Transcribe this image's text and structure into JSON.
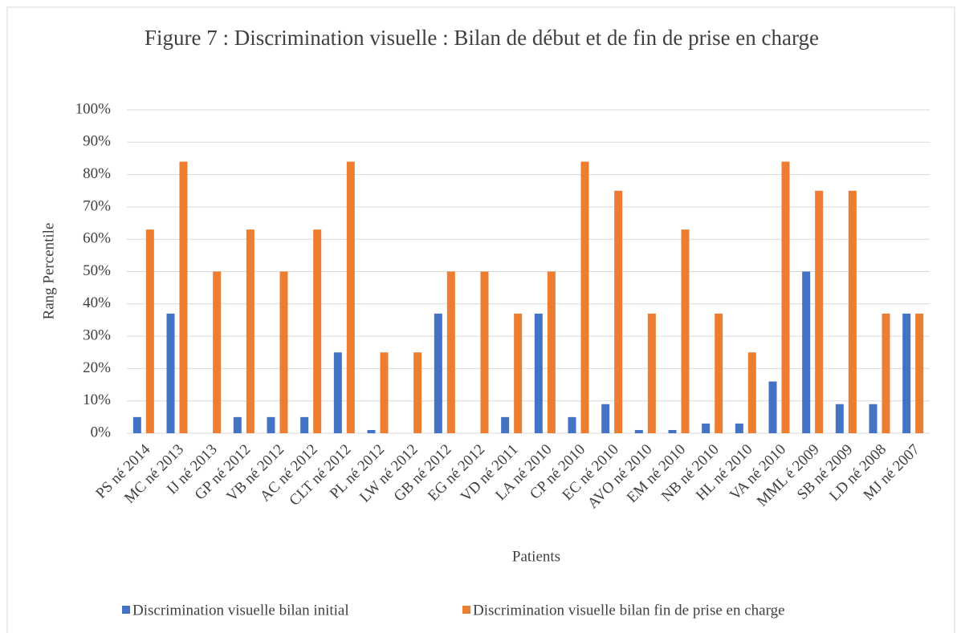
{
  "chart_data": {
    "type": "bar",
    "title": "Figure 7 : Discrimination visuelle : Bilan de début et de fin de prise en charge",
    "x_label": "Patients",
    "y_label": "Rang Percentile",
    "categories": [
      "PS né 2014",
      "MC né 2013",
      "IJ né 2013",
      "GP né 2012",
      "VB né 2012",
      "AC né 2012",
      "CLT né 2012",
      "PL né 2012",
      "LW né 2012",
      "GB né 2012",
      "EG né 2012",
      "VD né 2011",
      "LA né 2010",
      "CP né 2010",
      "EC né 2010",
      "AVO né 2010",
      "EM né 2010",
      "NB né 2010",
      "HL né 2010",
      "VA né 2010",
      "MML é 2009",
      "SB né 2009",
      "LD né 2008",
      "MJ né 2007"
    ],
    "series": [
      {
        "name": "Discrimination visuelle bilan initial",
        "color": "#4472c4",
        "values": [
          5,
          37,
          0,
          5,
          5,
          5,
          25,
          1,
          0,
          37,
          0,
          5,
          37,
          5,
          9,
          1,
          1,
          3,
          3,
          16,
          50,
          9,
          9,
          37
        ]
      },
      {
        "name": "Discrimination visuelle bilan fin de prise en charge",
        "color": "#ed7d31",
        "values": [
          63,
          84,
          50,
          63,
          50,
          63,
          84,
          25,
          25,
          50,
          50,
          37,
          50,
          84,
          75,
          37,
          63,
          37,
          25,
          84,
          75,
          75,
          37,
          37
        ]
      }
    ],
    "ylim": [
      0,
      100
    ],
    "yticks": [
      {
        "value": 0,
        "label": "0%"
      },
      {
        "value": 10,
        "label": "10%"
      },
      {
        "value": 20,
        "label": "20%"
      },
      {
        "value": 30,
        "label": "30%"
      },
      {
        "value": 40,
        "label": "40%"
      },
      {
        "value": 50,
        "label": "50%"
      },
      {
        "value": 60,
        "label": "60%"
      },
      {
        "value": 70,
        "label": "70%"
      },
      {
        "value": 80,
        "label": "80%"
      },
      {
        "value": 90,
        "label": "90%"
      },
      {
        "value": 100,
        "label": "100%"
      }
    ],
    "grid": true,
    "legend": "bottom"
  }
}
